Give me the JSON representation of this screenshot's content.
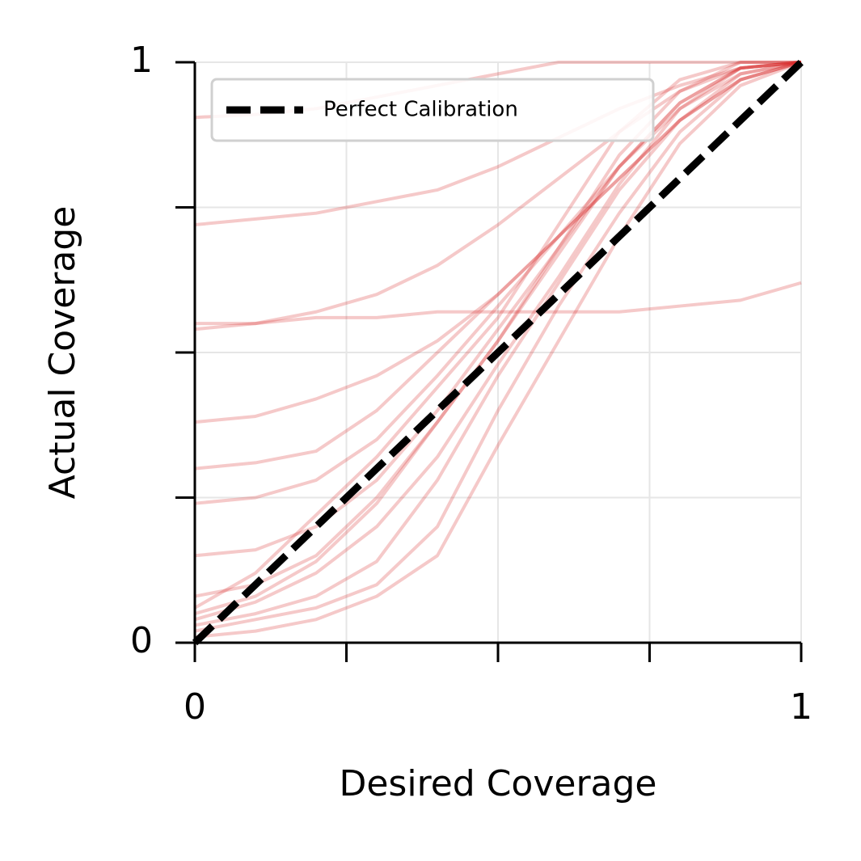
{
  "chart_data": {
    "type": "line",
    "xlabel": "Desired Coverage",
    "ylabel": "Actual Coverage",
    "xlim": [
      0,
      1
    ],
    "ylim": [
      0,
      1
    ],
    "xticks": [
      0,
      {
        "value": 0.25,
        "label": null
      },
      {
        "value": 0.5,
        "label": null
      },
      {
        "value": 0.75,
        "label": null
      },
      1
    ],
    "yticks": [
      0,
      {
        "value": 0.25,
        "label": null
      },
      {
        "value": 0.5,
        "label": null
      },
      {
        "value": 0.75,
        "label": null
      },
      1
    ],
    "grid": true,
    "legend": "upper left",
    "x": [
      0,
      0.1,
      0.2,
      0.3,
      0.4,
      0.5,
      0.6,
      0.7,
      0.8,
      0.9,
      1
    ],
    "series": [
      {
        "color": "#d62728",
        "opacity": 0.25,
        "values": [
          0.905,
          0.91,
          0.92,
          0.94,
          0.96,
          0.98,
          1,
          1,
          1,
          1,
          1
        ]
      },
      {
        "color": "#d62728",
        "opacity": 0.25,
        "values": [
          0.72,
          0.73,
          0.74,
          0.76,
          0.78,
          0.82,
          0.87,
          0.92,
          0.96,
          0.99,
          1
        ]
      },
      {
        "color": "#d62728",
        "opacity": 0.25,
        "values": [
          0.55,
          0.55,
          0.56,
          0.56,
          0.57,
          0.57,
          0.57,
          0.57,
          0.58,
          0.59,
          0.62
        ]
      },
      {
        "color": "#d62728",
        "opacity": 0.25,
        "values": [
          0.54,
          0.55,
          0.57,
          0.6,
          0.65,
          0.72,
          0.8,
          0.88,
          0.95,
          0.99,
          1
        ]
      },
      {
        "color": "#d62728",
        "opacity": 0.25,
        "values": [
          0.38,
          0.39,
          0.42,
          0.46,
          0.52,
          0.6,
          0.7,
          0.8,
          0.9,
          0.97,
          1
        ]
      },
      {
        "color": "#d62728",
        "opacity": 0.25,
        "values": [
          0.3,
          0.31,
          0.33,
          0.4,
          0.5,
          0.6,
          0.7,
          0.8,
          0.9,
          0.97,
          1
        ]
      },
      {
        "color": "#d62728",
        "opacity": 0.25,
        "values": [
          0.24,
          0.25,
          0.28,
          0.35,
          0.46,
          0.58,
          0.7,
          0.82,
          0.92,
          0.98,
          1
        ]
      },
      {
        "color": "#d62728",
        "opacity": 0.25,
        "values": [
          0.15,
          0.16,
          0.2,
          0.28,
          0.4,
          0.54,
          0.68,
          0.82,
          0.93,
          0.99,
          1
        ]
      },
      {
        "color": "#d62728",
        "opacity": 0.25,
        "values": [
          0.08,
          0.1,
          0.15,
          0.25,
          0.38,
          0.52,
          0.67,
          0.82,
          0.93,
          0.99,
          1
        ]
      },
      {
        "color": "#d62728",
        "opacity": 0.25,
        "values": [
          0.05,
          0.08,
          0.14,
          0.24,
          0.38,
          0.52,
          0.68,
          0.84,
          0.95,
          1,
          1
        ]
      },
      {
        "color": "#d62728",
        "opacity": 0.25,
        "values": [
          0.03,
          0.05,
          0.08,
          0.14,
          0.28,
          0.46,
          0.62,
          0.78,
          0.9,
          0.98,
          1
        ]
      },
      {
        "color": "#d62728",
        "opacity": 0.25,
        "values": [
          0.02,
          0.04,
          0.06,
          0.1,
          0.2,
          0.4,
          0.58,
          0.74,
          0.88,
          0.97,
          1
        ]
      },
      {
        "color": "#d62728",
        "opacity": 0.25,
        "values": [
          0.01,
          0.02,
          0.04,
          0.08,
          0.15,
          0.34,
          0.52,
          0.7,
          0.86,
          0.96,
          1
        ]
      },
      {
        "color": "#d62728",
        "opacity": 0.25,
        "values": [
          0.04,
          0.07,
          0.12,
          0.2,
          0.32,
          0.48,
          0.63,
          0.79,
          0.92,
          0.99,
          1
        ]
      },
      {
        "color": "#d62728",
        "opacity": 0.25,
        "values": [
          0.06,
          0.12,
          0.22,
          0.32,
          0.44,
          0.56,
          0.72,
          0.88,
          0.97,
          1,
          1
        ]
      },
      {
        "name": "Perfect Calibration",
        "color": "#000000",
        "linestyle": "dashed",
        "values": [
          0,
          0.1,
          0.2,
          0.3,
          0.4,
          0.5,
          0.6,
          0.7,
          0.8,
          0.9,
          1
        ]
      }
    ]
  }
}
